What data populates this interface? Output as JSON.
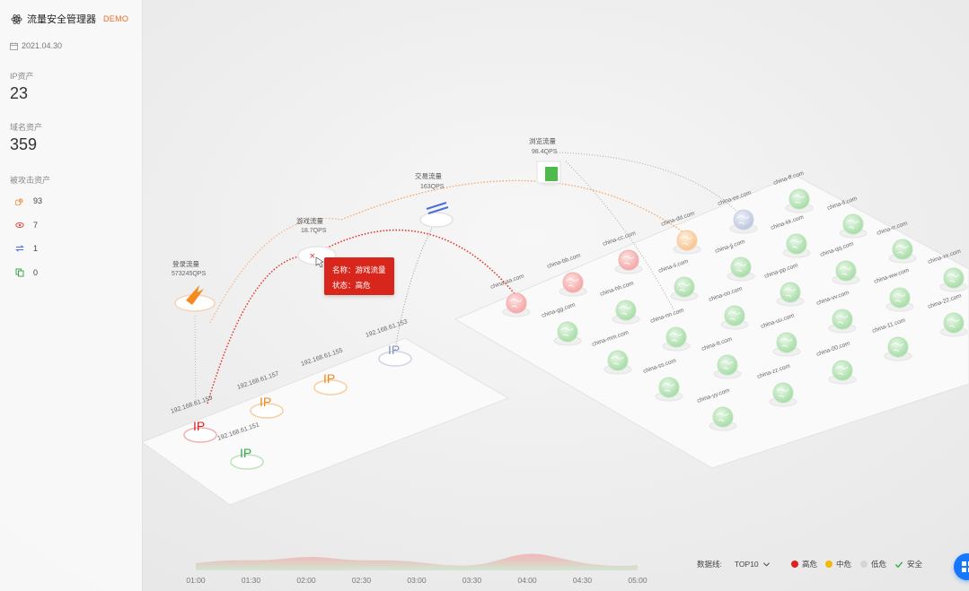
{
  "app": {
    "title": "流量安全管理器",
    "tag": "DEMO",
    "date": "2021.04.30"
  },
  "stats": [
    {
      "label": "IP资产",
      "value": "23"
    },
    {
      "label": "域名资产",
      "value": "359"
    }
  ],
  "attacked": {
    "label": "被攻击资产",
    "items": [
      {
        "icon": "spiral-icon",
        "count": "93",
        "color": "#f08a3a"
      },
      {
        "icon": "eye-icon",
        "count": "7",
        "color": "#e8473c"
      },
      {
        "icon": "swap-icon",
        "count": "1",
        "color": "#4a6fd8"
      },
      {
        "icon": "copy-icon",
        "count": "0",
        "color": "#3aa84a"
      }
    ]
  },
  "flows": [
    {
      "name": "登录流量",
      "qps": "573245QPS"
    },
    {
      "name": "游戏流量",
      "qps": "18.7QPS"
    },
    {
      "name": "交易流量",
      "qps": "163QPS"
    },
    {
      "name": "浏览流量",
      "qps": "98.4QPS"
    }
  ],
  "ips": [
    {
      "ip": "192.168.61.159",
      "status": "high"
    },
    {
      "ip": "192.168.61.157",
      "status": "mid"
    },
    {
      "ip": "192.168.61.155",
      "status": "mid"
    },
    {
      "ip": "192.168.61.153",
      "status": "low"
    },
    {
      "ip": "192.168.61.151",
      "status": "safe"
    }
  ],
  "ip_glyph": "IP",
  "domains": [
    {
      "name": "china-aa.com",
      "status": "high"
    },
    {
      "name": "china-bb.com",
      "status": "high"
    },
    {
      "name": "china-cc.com",
      "status": "high"
    },
    {
      "name": "china-dd.com",
      "status": "mid"
    },
    {
      "name": "china-ee.com",
      "status": "low"
    },
    {
      "name": "china-ff.com",
      "status": "safe"
    },
    {
      "name": "china-gg.com",
      "status": "safe"
    },
    {
      "name": "china-hh.com",
      "status": "safe"
    },
    {
      "name": "china-ii.com",
      "status": "safe"
    },
    {
      "name": "china-jj.com",
      "status": "safe"
    },
    {
      "name": "china-kk.com",
      "status": "safe"
    },
    {
      "name": "china-ll.com",
      "status": "safe"
    },
    {
      "name": "china-mm.com",
      "status": "safe"
    },
    {
      "name": "china-nn.com",
      "status": "safe"
    },
    {
      "name": "china-oo.com",
      "status": "safe"
    },
    {
      "name": "china-pp.com",
      "status": "safe"
    },
    {
      "name": "china-qq.com",
      "status": "safe"
    },
    {
      "name": "china-rr.com",
      "status": "safe"
    },
    {
      "name": "china-ss.com",
      "status": "safe"
    },
    {
      "name": "china-tt.com",
      "status": "safe"
    },
    {
      "name": "china-uu.com",
      "status": "safe"
    },
    {
      "name": "china-vv.com",
      "status": "safe"
    },
    {
      "name": "china-ww.com",
      "status": "safe"
    },
    {
      "name": "china-xx.com",
      "status": "safe"
    },
    {
      "name": "china-yy.com",
      "status": "safe"
    },
    {
      "name": "china-zz.com",
      "status": "safe"
    },
    {
      "name": "china-00.com",
      "status": "safe"
    },
    {
      "name": "china-11.com",
      "status": "safe"
    },
    {
      "name": "china-22.com",
      "status": "safe"
    }
  ],
  "tooltip": {
    "name_line": "名称：游戏流量",
    "status_line": "状态：高危"
  },
  "legend": {
    "dataline_label": "数据线:",
    "dataline_value": "TOP10",
    "levels": [
      {
        "label": "高危",
        "color": "#e02020"
      },
      {
        "label": "中危",
        "color": "#f5b800"
      },
      {
        "label": "低危",
        "color": "#cccccc"
      },
      {
        "label": "安全",
        "color": "#3aa84a"
      }
    ]
  },
  "timeline": {
    "labels": [
      "01:00",
      "01:30",
      "02:00",
      "02:30",
      "03:00",
      "03:30",
      "04:00",
      "04:30",
      "05:00"
    ]
  },
  "colors": {
    "high": "#e02020",
    "mid": "#f08a1a",
    "low": "#8a96b8",
    "safe": "#3aa84a",
    "accent": "#1677ff"
  }
}
